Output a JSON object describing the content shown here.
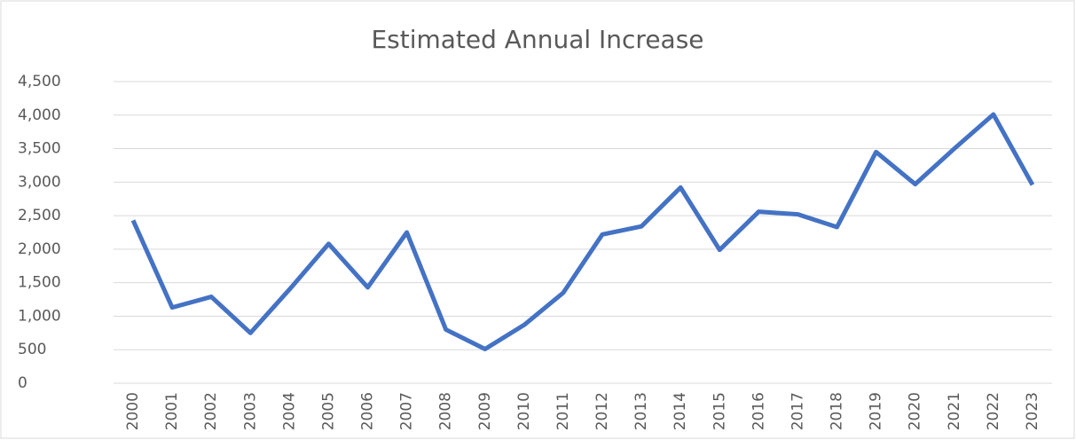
{
  "chart_data": {
    "type": "line",
    "title": "Estimated Annual Increase",
    "categories": [
      "2000",
      "2001",
      "2002",
      "2003",
      "2004",
      "2005",
      "2006",
      "2007",
      "2008",
      "2009",
      "2010",
      "2011",
      "2012",
      "2013",
      "2014",
      "2015",
      "2016",
      "2017",
      "2018",
      "2019",
      "2020",
      "2021",
      "2022",
      "2023"
    ],
    "series": [
      {
        "name": "Estimated Annual Increase",
        "color": "#4472c4",
        "values": [
          2430,
          1130,
          1290,
          750,
          1400,
          2080,
          1430,
          2250,
          800,
          510,
          870,
          1350,
          2220,
          2340,
          2920,
          1990,
          2560,
          2520,
          2330,
          3450,
          2970,
          3500,
          4010,
          2960
        ]
      }
    ],
    "ylim": [
      0,
      4500
    ],
    "yticks": [
      0,
      500,
      {
        "value": 1000,
        "label": "1,000"
      },
      {
        "value": 1500,
        "label": "1,500"
      },
      {
        "value": 2000,
        "label": "2,000"
      },
      {
        "value": 2500,
        "label": "2,500"
      },
      {
        "value": 3000,
        "label": "3,000"
      },
      {
        "value": 3500,
        "label": "3,500"
      },
      {
        "value": 4000,
        "label": "4,000"
      },
      {
        "value": 4500,
        "label": "4,500"
      }
    ],
    "grid": true
  }
}
